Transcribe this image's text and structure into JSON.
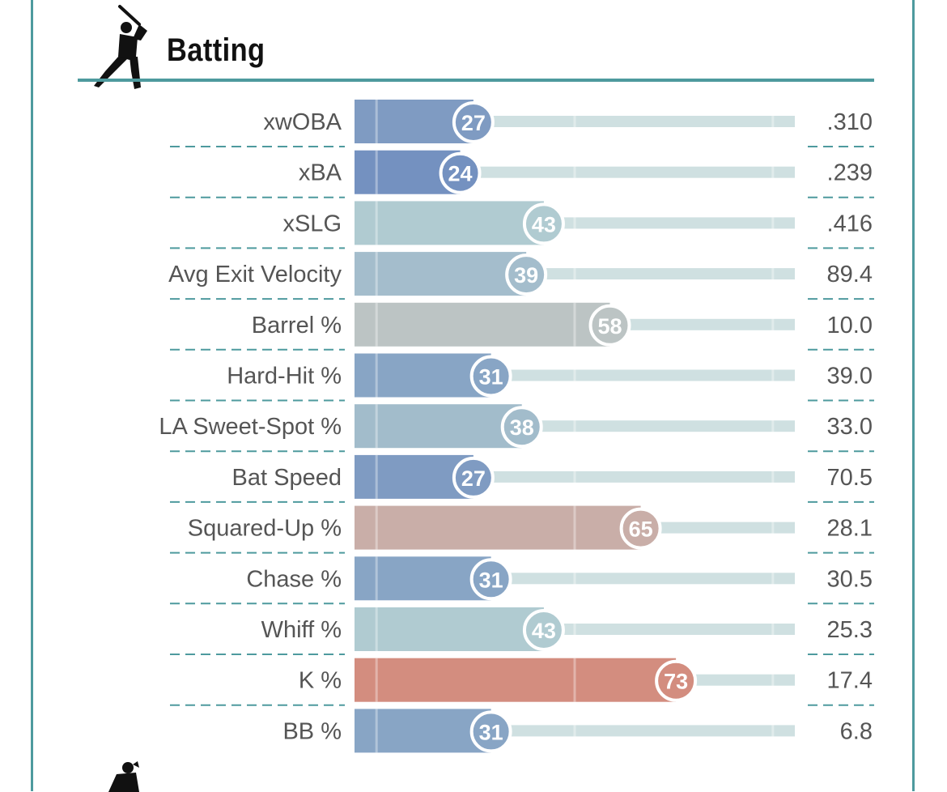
{
  "section": {
    "title": "Batting",
    "icon": "batter-icon",
    "next_icon": "pitcher-icon"
  },
  "colors": {
    "frame": "#4e9a9e",
    "track": "#cfe0e1"
  },
  "chart_data": {
    "type": "bar",
    "orientation": "horizontal",
    "title": "Batting",
    "xlim": [
      0,
      100
    ],
    "series": [
      {
        "label": "xwOBA",
        "percentile": 27,
        "value": ".310",
        "color": "#7f9bc2"
      },
      {
        "label": "xBA",
        "percentile": 24,
        "value": ".239",
        "color": "#7491c0"
      },
      {
        "label": "xSLG",
        "percentile": 43,
        "value": ".416",
        "color": "#b0cbd1"
      },
      {
        "label": "Avg Exit Velocity",
        "percentile": 39,
        "value": "89.4",
        "color": "#a4bdcc"
      },
      {
        "label": "Barrel %",
        "percentile": 58,
        "value": "10.0",
        "color": "#bcc4c4"
      },
      {
        "label": "Hard-Hit %",
        "percentile": 31,
        "value": "39.0",
        "color": "#88a5c5"
      },
      {
        "label": "LA Sweet-Spot %",
        "percentile": 38,
        "value": "33.0",
        "color": "#a2bccb"
      },
      {
        "label": "Bat Speed",
        "percentile": 27,
        "value": "70.5",
        "color": "#7f9bc2"
      },
      {
        "label": "Squared-Up %",
        "percentile": 65,
        "value": "28.1",
        "color": "#c9aea8"
      },
      {
        "label": "Chase %",
        "percentile": 31,
        "value": "30.5",
        "color": "#88a5c5"
      },
      {
        "label": "Whiff %",
        "percentile": 43,
        "value": "25.3",
        "color": "#b0cbd1"
      },
      {
        "label": "K %",
        "percentile": 73,
        "value": "17.4",
        "color": "#d38d7f"
      },
      {
        "label": "BB %",
        "percentile": 31,
        "value": "6.8",
        "color": "#88a5c5"
      }
    ]
  }
}
